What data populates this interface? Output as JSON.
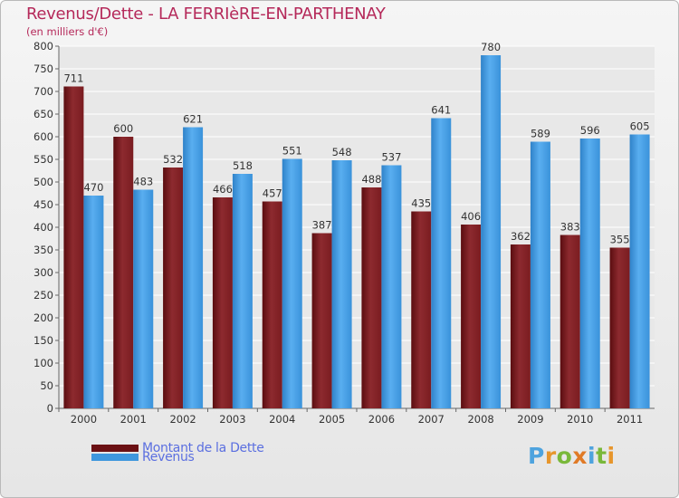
{
  "title": "Revenus/Dette - LA FERRIèRE-EN-PARTHENAY",
  "subtitle": "(en milliers d'€)",
  "chart_data": {
    "type": "bar",
    "title": "Revenus/Dette - LA FERRIèRE-EN-PARTHENAY",
    "subtitle": "(en milliers d'€)",
    "categories": [
      "2000",
      "2001",
      "2002",
      "2003",
      "2004",
      "2005",
      "2006",
      "2007",
      "2008",
      "2009",
      "2010",
      "2011"
    ],
    "series": [
      {
        "name": "Montant de la Dette",
        "color": "#8b2a2e",
        "values": [
          711,
          600,
          532,
          466,
          457,
          387,
          488,
          435,
          406,
          362,
          383,
          355
        ]
      },
      {
        "name": "Revenus",
        "color": "#4aa3e6",
        "values": [
          470,
          483,
          621,
          518,
          551,
          548,
          537,
          641,
          780,
          589,
          596,
          605
        ]
      }
    ],
    "ylim": [
      0,
      800
    ],
    "yticks": [
      0,
      50,
      100,
      150,
      200,
      250,
      300,
      350,
      400,
      450,
      500,
      550,
      600,
      650,
      700,
      750,
      800
    ],
    "grid": true,
    "legend": "bottom-left"
  },
  "legend": [
    {
      "label": "Montant de la Dette",
      "color": "#6b1013"
    },
    {
      "label": "Revenus",
      "color": "#3f97dd"
    }
  ],
  "logo": {
    "letters": [
      {
        "ch": "P",
        "color": "#4ea3de"
      },
      {
        "ch": "r",
        "color": "#e7962c"
      },
      {
        "ch": "o",
        "color": "#79b83a"
      },
      {
        "ch": "x",
        "color": "#e07a26"
      },
      {
        "ch": "i",
        "color": "#4ea3de"
      },
      {
        "ch": "t",
        "color": "#79b83a"
      },
      {
        "ch": "i",
        "color": "#e7962c"
      }
    ]
  }
}
